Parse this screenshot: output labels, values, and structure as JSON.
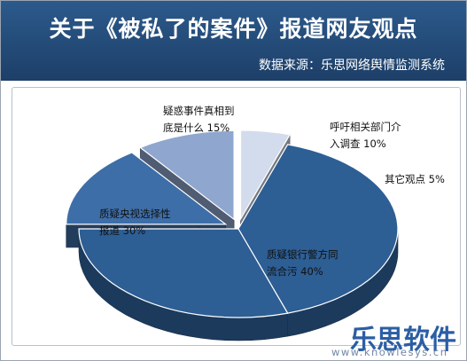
{
  "header": {
    "title": "关于《被私了的案件》报道网友观点",
    "source": "数据来源：乐思网络舆情监测系统"
  },
  "chart_data": {
    "type": "pie",
    "categories": [
      "质疑银行警方同流合污",
      "质疑央视选择性报道",
      "疑惑事件真相到底是什么",
      "呼吁相关部门介入调查",
      "其它观点"
    ],
    "values": [
      40,
      30,
      15,
      10,
      5
    ],
    "labels": [
      [
        "质疑银行警方同",
        "流合污",
        "40%"
      ],
      [
        "质疑央视选择性",
        "报道",
        "30%"
      ],
      [
        "疑惑事件真相到",
        "底是什么",
        "15%"
      ],
      [
        "呼吁相关部门介",
        "入调查",
        "10%"
      ],
      [
        "其它观点",
        "5%"
      ]
    ],
    "colors": [
      "#2d5e94",
      "#2d5e94",
      "#3e6ea8",
      "#8fa7cf",
      "#d2dcec"
    ],
    "exploded": [
      false,
      false,
      true,
      true,
      true
    ],
    "three_d": true
  },
  "watermark": {
    "brand": "乐思软件",
    "url": "www.knowlesys.cn"
  }
}
